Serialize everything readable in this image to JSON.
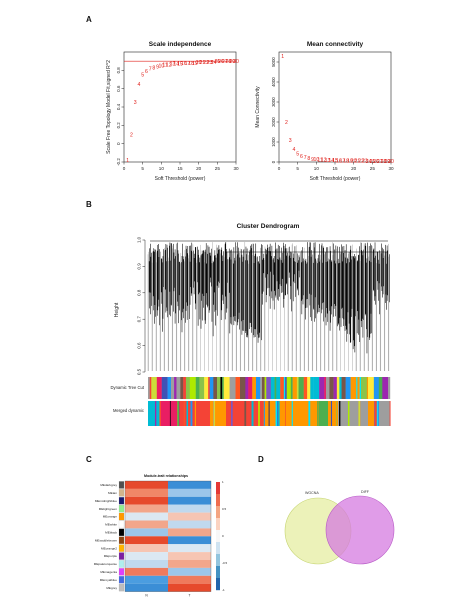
{
  "panel_labels": [
    "A",
    "B",
    "C",
    "D"
  ],
  "chart_data": [
    {
      "type": "scatter",
      "title": "Scale independence",
      "xlabel": "Soft Threshold (power)",
      "ylabel": "Scale Free Topology Model Fit,signed R^2",
      "xlim": [
        0,
        30
      ],
      "ylim": [
        -0.2,
        1.0
      ],
      "xticks": [
        0,
        5,
        10,
        15,
        20,
        25,
        30
      ],
      "yticks": [
        -0.2,
        0.0,
        0.2,
        0.4,
        0.6,
        0.8
      ],
      "hline": 0.9,
      "point_color": "#e0201b",
      "x": [
        1,
        2,
        3,
        4,
        5,
        6,
        7,
        8,
        9,
        10,
        11,
        12,
        13,
        14,
        15,
        16,
        17,
        18,
        19,
        20,
        21,
        22,
        23,
        24,
        25,
        26,
        27,
        28,
        29,
        30
      ],
      "y": [
        -0.18,
        0.1,
        0.45,
        0.65,
        0.75,
        0.79,
        0.82,
        0.83,
        0.84,
        0.85,
        0.86,
        0.86,
        0.87,
        0.87,
        0.87,
        0.88,
        0.88,
        0.88,
        0.88,
        0.89,
        0.89,
        0.89,
        0.89,
        0.89,
        0.9,
        0.9,
        0.9,
        0.9,
        0.9,
        0.9
      ]
    },
    {
      "type": "scatter",
      "title": "Mean connectivity",
      "xlabel": "Soft Threshold (power)",
      "ylabel": "Mean Connectivity",
      "xlim": [
        0,
        30
      ],
      "ylim": [
        0,
        5500
      ],
      "xticks": [
        0,
        5,
        10,
        15,
        20,
        25,
        30
      ],
      "yticks": [
        0,
        1000,
        2000,
        3000,
        4000,
        5000
      ],
      "point_color": "#e0201b",
      "x": [
        1,
        2,
        3,
        4,
        5,
        6,
        7,
        8,
        9,
        10,
        11,
        12,
        13,
        14,
        15,
        16,
        17,
        18,
        19,
        20,
        21,
        22,
        23,
        24,
        25,
        26,
        27,
        28,
        29,
        30
      ],
      "y": [
        5300,
        2000,
        1100,
        650,
        420,
        300,
        230,
        180,
        150,
        130,
        115,
        105,
        95,
        88,
        82,
        77,
        72,
        68,
        65,
        62,
        59,
        56,
        54,
        52,
        50,
        48,
        46,
        45,
        43,
        42
      ]
    },
    {
      "type": "dendrogram",
      "title": "Cluster Dendrogram",
      "ylabel": "Height",
      "yticks": [
        0.5,
        0.6,
        0.7,
        0.8,
        0.9,
        1.0
      ],
      "ylim": [
        0.5,
        1.0
      ],
      "color_rows": [
        "Dynamic Tree Cut",
        "Merged dynamic"
      ]
    },
    {
      "type": "heatmap",
      "title": "Module-trait relationships",
      "columns": [
        "N",
        "T"
      ],
      "rows": [
        "MEdarkgrey",
        "MEtan",
        "MEmidnightblue",
        "MElightgreen",
        "MEorange",
        "MEwhite",
        "MEblack",
        "MEsaddlebrown",
        "MEorange2",
        "MEpurple",
        "MEpaleturquoise",
        "MEmagenta",
        "MEroyalblue",
        "MEgrey"
      ],
      "legend_ticks": [
        "1",
        "0.5",
        "0",
        "-0.5",
        "-1"
      ]
    },
    {
      "type": "venn",
      "sets": [
        "WGCNA",
        "DIFF"
      ],
      "set_colors": [
        "#dfe98a",
        "#d57be0"
      ],
      "values": {
        "only_a": "",
        "both": "",
        "only_b": ""
      }
    }
  ]
}
